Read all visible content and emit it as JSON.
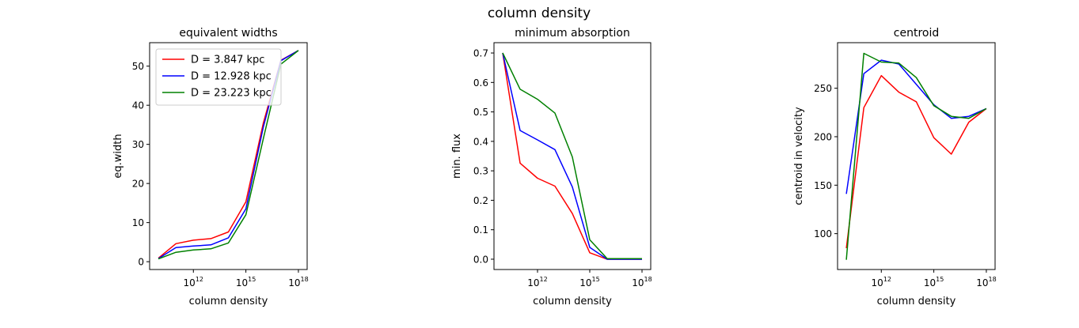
{
  "figure": {
    "title": "column density"
  },
  "chart_data": [
    {
      "type": "line",
      "title": "equivalent widths",
      "xlabel": "column density",
      "ylabel": "eq.width",
      "xscale": "log",
      "xlim_log10": [
        9.5,
        18.5
      ],
      "ylim": [
        -2,
        56
      ],
      "x_ticks": [
        {
          "exp": 12,
          "base": "10",
          "sup": "12"
        },
        {
          "exp": 15,
          "base": "10",
          "sup": "15"
        },
        {
          "exp": 18,
          "base": "10",
          "sup": "18"
        }
      ],
      "y_ticks": [
        0,
        10,
        20,
        30,
        40,
        50
      ],
      "x_log10": [
        10,
        11,
        12,
        13,
        14,
        15,
        16,
        17,
        18
      ],
      "legend": "upper left",
      "grid": false,
      "series": [
        {
          "name": "D = 3.847 kpc",
          "color": "#ff0000",
          "values": [
            0.9,
            4.6,
            5.5,
            5.9,
            7.6,
            15.3,
            35.5,
            51.5,
            54
          ]
        },
        {
          "name": "D = 12.928 kpc",
          "color": "#0000ff",
          "values": [
            0.8,
            3.6,
            4.0,
            4.3,
            6.1,
            13.5,
            34.5,
            51.4,
            54
          ]
        },
        {
          "name": "D = 23.223 kpc",
          "color": "#008000",
          "values": [
            0.7,
            2.4,
            3.0,
            3.3,
            4.8,
            12.0,
            31.5,
            50.5,
            54
          ]
        }
      ]
    },
    {
      "type": "line",
      "title": "minimum absorption",
      "xlabel": "column density",
      "ylabel": "min. flux",
      "xscale": "log",
      "xlim_log10": [
        9.5,
        18.5
      ],
      "ylim": [
        -0.035,
        0.735
      ],
      "x_ticks": [
        {
          "exp": 12,
          "base": "10",
          "sup": "12"
        },
        {
          "exp": 15,
          "base": "10",
          "sup": "15"
        },
        {
          "exp": 18,
          "base": "10",
          "sup": "18"
        }
      ],
      "y_ticks": [
        "0.0",
        "0.1",
        "0.2",
        "0.3",
        "0.4",
        "0.5",
        "0.6",
        "0.7"
      ],
      "x_log10": [
        10,
        11,
        12,
        13,
        14,
        15,
        16,
        17,
        18
      ],
      "grid": false,
      "series": [
        {
          "color": "#ff0000",
          "values": [
            0.7,
            0.326,
            0.275,
            0.248,
            0.155,
            0.022,
            0.0,
            0.0,
            0.0
          ]
        },
        {
          "color": "#0000ff",
          "values": [
            0.7,
            0.437,
            0.405,
            0.372,
            0.245,
            0.04,
            0.0,
            0.0,
            0.0
          ]
        },
        {
          "color": "#008000",
          "values": [
            0.7,
            0.577,
            0.543,
            0.496,
            0.347,
            0.066,
            0.002,
            0.002,
            0.002
          ]
        }
      ]
    },
    {
      "type": "line",
      "title": "centroid",
      "xlabel": "column density",
      "ylabel": "centroid in velocity",
      "xscale": "log",
      "xlim_log10": [
        9.5,
        18.5
      ],
      "ylim": [
        63,
        297
      ],
      "x_ticks": [
        {
          "exp": 12,
          "base": "10",
          "sup": "12"
        },
        {
          "exp": 15,
          "base": "10",
          "sup": "15"
        },
        {
          "exp": 18,
          "base": "10",
          "sup": "18"
        }
      ],
      "y_ticks": [
        100,
        150,
        200,
        250
      ],
      "x_log10": [
        10,
        11,
        12,
        13,
        14,
        15,
        16,
        17,
        18
      ],
      "grid": false,
      "series": [
        {
          "color": "#ff0000",
          "values": [
            85,
            230,
            263,
            246,
            236,
            199,
            182,
            215,
            229
          ]
        },
        {
          "color": "#0000ff",
          "values": [
            141,
            265,
            279,
            275,
            254,
            233,
            219,
            221,
            229
          ]
        },
        {
          "color": "#008000",
          "values": [
            73,
            286,
            277,
            276,
            261,
            232,
            221,
            219,
            229
          ]
        }
      ]
    }
  ]
}
